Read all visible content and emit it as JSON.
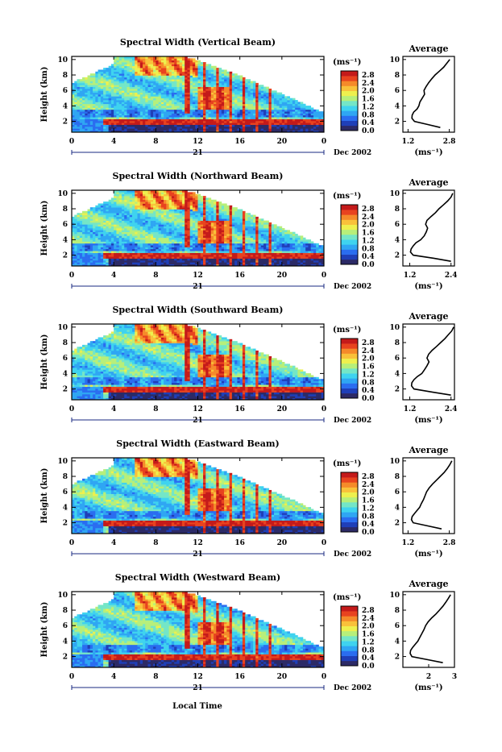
{
  "figure": {
    "date_label": "Dec 2002",
    "day_label": "21",
    "xlabel": "Local Time"
  },
  "colors": {
    "scale": [
      "#2c2a66",
      "#1f3fb8",
      "#2a6df0",
      "#2fa6f3",
      "#3fd3ef",
      "#74e6c7",
      "#b7ef7a",
      "#eef04e",
      "#f9c13a",
      "#f58a2a",
      "#e8431f",
      "#c41a1a"
    ],
    "missing": "#ffffff"
  },
  "chart_data": [
    {
      "id": "vertical",
      "type": "heatmap",
      "title": "Spectral Width (Vertical Beam)",
      "xlabel": "",
      "ylabel": "Height (km)",
      "x_ticks": [
        "0",
        "4",
        "8",
        "12",
        "16",
        "20",
        "0"
      ],
      "xlim": [
        0,
        24
      ],
      "y_ticks": [
        "2",
        "4",
        "6",
        "8",
        "10"
      ],
      "ylim": [
        0.6,
        10.4
      ],
      "colorbar": {
        "unit": "(ms⁻¹)",
        "ticks": [
          "0.0",
          "0.4",
          "0.8",
          "1.2",
          "1.6",
          "2.0",
          "2.4",
          "2.8"
        ],
        "range": [
          0.0,
          3.0
        ]
      },
      "profile": {
        "title": "Average",
        "xlabel": "(ms⁻¹)",
        "x_ticks": [
          "1.2",
          "2.8"
        ],
        "xlim": [
          1.0,
          3.0
        ],
        "y_ticks": [
          "2",
          "4",
          "6",
          "8",
          "10"
        ],
        "height_km": [
          1.2,
          1.6,
          2.0,
          2.4,
          2.8,
          3.2,
          3.6,
          4.0,
          4.5,
          5.0,
          5.5,
          6.0,
          6.5,
          7.0,
          7.5,
          8.0,
          8.5,
          9.0,
          9.5,
          10.0
        ],
        "value_ms": [
          2.45,
          1.95,
          1.45,
          1.35,
          1.36,
          1.42,
          1.55,
          1.62,
          1.66,
          1.75,
          1.84,
          1.82,
          1.9,
          2.0,
          2.12,
          2.25,
          2.42,
          2.58,
          2.7,
          2.82
        ]
      }
    },
    {
      "id": "northward",
      "type": "heatmap",
      "title": "Spectral Width (Northward Beam)",
      "xlabel": "",
      "ylabel": "Height (km)",
      "x_ticks": [
        "0",
        "4",
        "8",
        "12",
        "16",
        "20",
        "0"
      ],
      "xlim": [
        0,
        24
      ],
      "y_ticks": [
        "2",
        "4",
        "6",
        "8",
        "10"
      ],
      "ylim": [
        0.6,
        10.4
      ],
      "colorbar": {
        "unit": "(ms⁻¹)",
        "ticks": [
          "0.0",
          "0.4",
          "0.8",
          "1.2",
          "1.6",
          "2.0",
          "2.4",
          "2.8"
        ],
        "range": [
          0.0,
          3.0
        ]
      },
      "profile": {
        "title": "Average",
        "xlabel": "(ms⁻¹)",
        "x_ticks": [
          "1.2",
          "2.4"
        ],
        "xlim": [
          1.0,
          2.5
        ],
        "y_ticks": [
          "2",
          "4",
          "6",
          "8",
          "10"
        ],
        "height_km": [
          1.2,
          1.6,
          2.0,
          2.4,
          2.8,
          3.2,
          3.6,
          4.0,
          4.5,
          5.0,
          5.5,
          6.0,
          6.5,
          7.0,
          7.5,
          8.0,
          8.5,
          9.0,
          9.5,
          10.0
        ],
        "value_ms": [
          2.4,
          1.9,
          1.3,
          1.22,
          1.24,
          1.3,
          1.38,
          1.52,
          1.62,
          1.68,
          1.72,
          1.66,
          1.7,
          1.82,
          1.95,
          2.05,
          2.18,
          2.3,
          2.4,
          2.45
        ]
      }
    },
    {
      "id": "southward",
      "type": "heatmap",
      "title": "Spectral Width (Southward Beam)",
      "xlabel": "",
      "ylabel": "Height (km)",
      "x_ticks": [
        "0",
        "4",
        "8",
        "12",
        "16",
        "20",
        "0"
      ],
      "xlim": [
        0,
        24
      ],
      "y_ticks": [
        "2",
        "4",
        "6",
        "8",
        "10"
      ],
      "ylim": [
        0.6,
        10.4
      ],
      "colorbar": {
        "unit": "(ms⁻¹)",
        "ticks": [
          "0.0",
          "0.4",
          "0.8",
          "1.2",
          "1.6",
          "2.0",
          "2.4",
          "2.8"
        ],
        "range": [
          0.0,
          3.0
        ]
      },
      "profile": {
        "title": "Average",
        "xlabel": "(ms⁻¹)",
        "x_ticks": [
          "1.2",
          "2.4"
        ],
        "xlim": [
          1.0,
          2.5
        ],
        "y_ticks": [
          "2",
          "4",
          "6",
          "8",
          "10"
        ],
        "height_km": [
          1.2,
          1.6,
          2.0,
          2.4,
          2.8,
          3.2,
          3.6,
          4.0,
          4.5,
          5.0,
          5.5,
          6.0,
          6.5,
          7.0,
          7.5,
          8.0,
          8.5,
          9.0,
          9.5,
          10.0
        ],
        "value_ms": [
          2.4,
          1.85,
          1.32,
          1.25,
          1.26,
          1.32,
          1.42,
          1.55,
          1.63,
          1.7,
          1.76,
          1.7,
          1.75,
          1.85,
          1.98,
          2.1,
          2.22,
          2.32,
          2.42,
          2.48
        ]
      }
    },
    {
      "id": "eastward",
      "type": "heatmap",
      "title": "Spectral Width (Eastward Beam)",
      "xlabel": "",
      "ylabel": "Height (km)",
      "x_ticks": [
        "0",
        "4",
        "8",
        "12",
        "16",
        "20",
        "0"
      ],
      "xlim": [
        0,
        24
      ],
      "y_ticks": [
        "2",
        "4",
        "6",
        "8",
        "10"
      ],
      "ylim": [
        0.6,
        10.4
      ],
      "colorbar": {
        "unit": "(ms⁻¹)",
        "ticks": [
          "0.0",
          "0.4",
          "0.8",
          "1.2",
          "1.6",
          "2.0",
          "2.4",
          "2.8"
        ],
        "range": [
          0.0,
          3.0
        ]
      },
      "profile": {
        "title": "Average",
        "xlabel": "(ms⁻¹)",
        "x_ticks": [
          "1.2",
          "2.8"
        ],
        "xlim": [
          1.0,
          3.0
        ],
        "y_ticks": [
          "2",
          "4",
          "6",
          "8",
          "10"
        ],
        "height_km": [
          1.2,
          1.6,
          2.0,
          2.4,
          2.8,
          3.2,
          3.6,
          4.0,
          4.5,
          5.0,
          5.5,
          6.0,
          6.5,
          7.0,
          7.5,
          8.0,
          8.5,
          9.0,
          9.5,
          10.0
        ],
        "value_ms": [
          2.5,
          1.95,
          1.4,
          1.33,
          1.36,
          1.45,
          1.55,
          1.65,
          1.72,
          1.8,
          1.86,
          1.92,
          2.02,
          2.15,
          2.3,
          2.45,
          2.6,
          2.72,
          2.82,
          2.9
        ]
      }
    },
    {
      "id": "westward",
      "type": "heatmap",
      "title": "Spectral Width (Westward Beam)",
      "xlabel": "Local Time",
      "ylabel": "Height (km)",
      "x_ticks": [
        "0",
        "4",
        "8",
        "12",
        "16",
        "20",
        "0"
      ],
      "xlim": [
        0,
        24
      ],
      "y_ticks": [
        "2",
        "4",
        "6",
        "8",
        "10"
      ],
      "ylim": [
        0.6,
        10.4
      ],
      "colorbar": {
        "unit": "(ms⁻¹)",
        "ticks": [
          "0.0",
          "0.4",
          "0.8",
          "1.2",
          "1.6",
          "2.0",
          "2.4",
          "2.8"
        ],
        "range": [
          0.0,
          3.0
        ]
      },
      "profile": {
        "title": "Average",
        "xlabel": "(ms⁻¹)",
        "x_ticks": [
          "2",
          "3"
        ],
        "xlim": [
          1.0,
          3.0
        ],
        "y_ticks": [
          "2",
          "4",
          "6",
          "8",
          "10"
        ],
        "height_km": [
          1.2,
          1.6,
          2.0,
          2.4,
          2.8,
          3.2,
          3.6,
          4.0,
          4.5,
          5.0,
          5.5,
          6.0,
          6.5,
          7.0,
          7.5,
          8.0,
          8.5,
          9.0,
          9.5,
          10.0
        ],
        "value_ms": [
          2.55,
          1.95,
          1.35,
          1.28,
          1.3,
          1.38,
          1.48,
          1.58,
          1.66,
          1.74,
          1.82,
          1.88,
          1.98,
          2.12,
          2.28,
          2.42,
          2.55,
          2.66,
          2.76,
          2.85
        ]
      }
    }
  ]
}
